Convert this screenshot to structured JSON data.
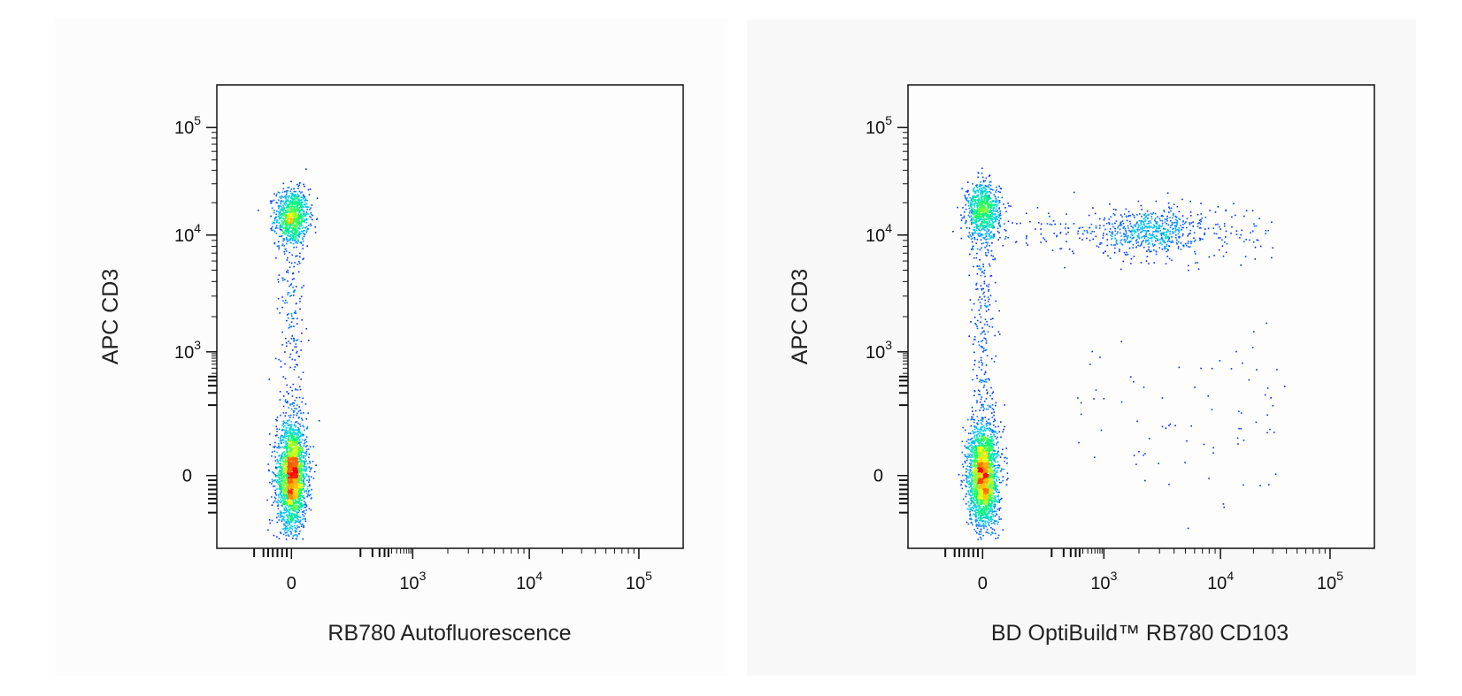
{
  "chart_data": [
    {
      "type": "scatter",
      "subtype": "flow-cytometry-density-dot-plot",
      "xlabel": "RB780 Autofluorescence",
      "ylabel": "APC CD3",
      "x_scale": "biexponential",
      "y_scale": "biexponential",
      "x_ticks": [
        {
          "value": 0,
          "label": "0"
        },
        {
          "value": 1000,
          "label": "10",
          "exp": "3"
        },
        {
          "value": 10000,
          "label": "10",
          "exp": "4"
        },
        {
          "value": 100000,
          "label": "10",
          "exp": "5"
        }
      ],
      "y_ticks": [
        {
          "value": 0,
          "label": "0"
        },
        {
          "value": 1000,
          "label": "10",
          "exp": "3"
        },
        {
          "value": 10000,
          "label": "10",
          "exp": "4"
        },
        {
          "value": 100000,
          "label": "10",
          "exp": "5"
        }
      ],
      "colormap": [
        "#0000ff",
        "#00c8ff",
        "#00ff66",
        "#ffff00",
        "#ff0000"
      ],
      "populations": [
        {
          "x": 0,
          "y": 15000,
          "count": 900,
          "pattern": "cluster"
        },
        {
          "x": 0,
          "y": 0,
          "count": 2400,
          "pattern": "cluster"
        },
        {
          "x": 0,
          "y": 1500,
          "count": 260,
          "pattern": "bridge"
        }
      ]
    },
    {
      "type": "scatter",
      "subtype": "flow-cytometry-density-dot-plot",
      "xlabel": "BD OptiBuild™ RB780 CD103",
      "ylabel": "APC CD3",
      "x_scale": "biexponential",
      "y_scale": "biexponential",
      "x_ticks": [
        {
          "value": 0,
          "label": "0"
        },
        {
          "value": 1000,
          "label": "10",
          "exp": "3"
        },
        {
          "value": 10000,
          "label": "10",
          "exp": "4"
        },
        {
          "value": 100000,
          "label": "10",
          "exp": "5"
        }
      ],
      "y_ticks": [
        {
          "value": 0,
          "label": "0"
        },
        {
          "value": 1000,
          "label": "10",
          "exp": "3"
        },
        {
          "value": 10000,
          "label": "10",
          "exp": "4"
        },
        {
          "value": 100000,
          "label": "10",
          "exp": "5"
        }
      ],
      "colormap": [
        "#0000ff",
        "#00c8ff",
        "#00ff66",
        "#ffff00",
        "#ff0000"
      ],
      "populations": [
        {
          "x": 0,
          "y": 17000,
          "count": 800,
          "pattern": "cluster"
        },
        {
          "x": 2500,
          "y": 11000,
          "count": 520,
          "pattern": "cluster"
        },
        {
          "x": 300,
          "y": 11000,
          "count": 260,
          "pattern": "band"
        },
        {
          "x": 0,
          "y": 0,
          "count": 2400,
          "pattern": "cluster"
        },
        {
          "x": 0,
          "y": 800,
          "count": 300,
          "pattern": "bridge"
        },
        {
          "x": 3000,
          "y": 500,
          "count": 80,
          "pattern": "scatter"
        }
      ]
    }
  ]
}
